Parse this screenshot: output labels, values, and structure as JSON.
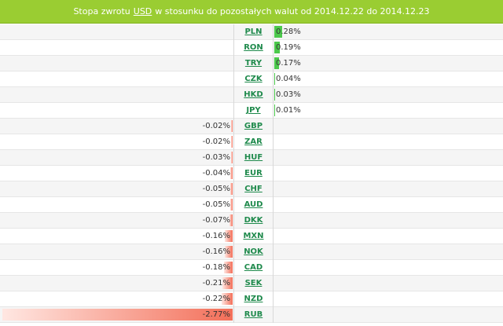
{
  "header": {
    "prefix": "Stopa zwrotu",
    "base_currency": "USD",
    "suffix": "w stosunku do pozostałych walut od 2014.12.22 do 2014.12.23"
  },
  "colors": {
    "header_bg": "#9acd32",
    "positive_bar": "#4cc94c",
    "negative_bar": "#f36f59",
    "link": "#1f8a4c"
  },
  "rows": [
    {
      "code": "PLN",
      "value": "0.28%",
      "num": 0.28
    },
    {
      "code": "RON",
      "value": "0.19%",
      "num": 0.19
    },
    {
      "code": "TRY",
      "value": "0.17%",
      "num": 0.17
    },
    {
      "code": "CZK",
      "value": "0.04%",
      "num": 0.04
    },
    {
      "code": "HKD",
      "value": "0.03%",
      "num": 0.03
    },
    {
      "code": "JPY",
      "value": "0.01%",
      "num": 0.01
    },
    {
      "code": "GBP",
      "value": "-0.02%",
      "num": -0.02
    },
    {
      "code": "ZAR",
      "value": "-0.02%",
      "num": -0.02
    },
    {
      "code": "HUF",
      "value": "-0.03%",
      "num": -0.03
    },
    {
      "code": "EUR",
      "value": "-0.04%",
      "num": -0.04
    },
    {
      "code": "CHF",
      "value": "-0.05%",
      "num": -0.05
    },
    {
      "code": "AUD",
      "value": "-0.05%",
      "num": -0.05
    },
    {
      "code": "DKK",
      "value": "-0.07%",
      "num": -0.07
    },
    {
      "code": "MXN",
      "value": "-0.16%",
      "num": -0.16
    },
    {
      "code": "NOK",
      "value": "-0.16%",
      "num": -0.16
    },
    {
      "code": "CAD",
      "value": "-0.18%",
      "num": -0.18
    },
    {
      "code": "SEK",
      "value": "-0.21%",
      "num": -0.21
    },
    {
      "code": "NZD",
      "value": "-0.22%",
      "num": -0.22
    },
    {
      "code": "RUB",
      "value": "-2.77%",
      "num": -2.77
    }
  ]
}
